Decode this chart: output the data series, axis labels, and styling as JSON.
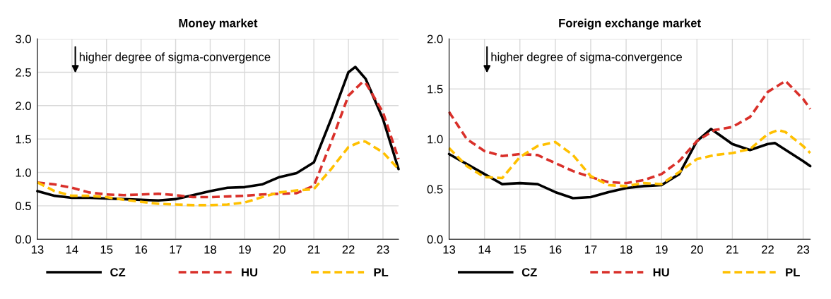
{
  "chart_data": [
    {
      "type": "line",
      "title": "Money market",
      "xlim": [
        13,
        23.45
      ],
      "xticks": [
        13,
        14,
        15,
        16,
        17,
        18,
        19,
        20,
        21,
        22,
        23
      ],
      "ylim": [
        0,
        3.0
      ],
      "yticks": [
        {
          "value": 0,
          "label": "0.0"
        },
        {
          "value": 0.5,
          "label": "0.5"
        },
        {
          "value": 1,
          "label": "1.0"
        },
        {
          "value": 1.5,
          "label": "1.5"
        },
        {
          "value": 2,
          "label": "2.0"
        },
        {
          "value": 2.5,
          "label": "2.5"
        },
        {
          "value": 3,
          "label": "3.0"
        }
      ],
      "grid": true,
      "legend": "bottom",
      "marker": "none",
      "annotations": [
        "higher degree of sigma-convergence"
      ],
      "series": [
        {
          "name": "CZ",
          "color": "#000000",
          "line_style": "solid",
          "x": [
            13,
            13.5,
            14,
            14.5,
            15,
            15.5,
            16,
            16.5,
            17,
            17.5,
            18,
            18.5,
            19,
            19.5,
            20,
            20.5,
            21,
            21.5,
            22,
            22.2,
            22.5,
            23,
            23.45
          ],
          "values": [
            0.72,
            0.65,
            0.62,
            0.62,
            0.61,
            0.6,
            0.59,
            0.58,
            0.6,
            0.66,
            0.72,
            0.77,
            0.78,
            0.82,
            0.93,
            0.99,
            1.15,
            1.8,
            2.5,
            2.58,
            2.4,
            1.8,
            1.05
          ]
        },
        {
          "name": "HU",
          "color": "#d9302a",
          "line_style": "dashed",
          "x": [
            13,
            13.5,
            14,
            14.5,
            15,
            15.5,
            16,
            16.5,
            17,
            17.5,
            18,
            18.5,
            19,
            19.5,
            20,
            20.5,
            21,
            21.5,
            22,
            22.4,
            22.5,
            23,
            23.45
          ],
          "values": [
            0.85,
            0.82,
            0.77,
            0.7,
            0.67,
            0.66,
            0.67,
            0.68,
            0.66,
            0.63,
            0.63,
            0.64,
            0.65,
            0.67,
            0.68,
            0.69,
            0.8,
            1.45,
            2.15,
            2.35,
            2.34,
            1.9,
            1.2
          ]
        },
        {
          "name": "PL",
          "color": "#ffc000",
          "line_style": "dashed",
          "x": [
            13,
            13.5,
            14,
            14.5,
            15,
            15.5,
            16,
            16.5,
            17,
            17.5,
            18,
            18.5,
            19,
            19.5,
            20,
            20.5,
            21,
            21.5,
            22,
            22.4,
            22.5,
            23,
            23.45
          ],
          "values": [
            0.85,
            0.72,
            0.65,
            0.65,
            0.63,
            0.59,
            0.56,
            0.53,
            0.52,
            0.51,
            0.51,
            0.52,
            0.55,
            0.63,
            0.7,
            0.73,
            0.75,
            1.05,
            1.38,
            1.47,
            1.46,
            1.3,
            1.05
          ]
        }
      ]
    },
    {
      "type": "line",
      "title": "Foreign exchange market",
      "xlim": [
        13,
        23.2
      ],
      "xticks": [
        13,
        14,
        15,
        16,
        17,
        18,
        19,
        20,
        21,
        22,
        23
      ],
      "ylim": [
        0,
        2.0
      ],
      "yticks": [
        {
          "value": 0,
          "label": "0.0"
        },
        {
          "value": 0.5,
          "label": "0.5"
        },
        {
          "value": 1,
          "label": "1.0"
        },
        {
          "value": 1.5,
          "label": "1.5"
        },
        {
          "value": 2,
          "label": "2.0"
        }
      ],
      "grid": true,
      "legend": "bottom",
      "marker": "none",
      "annotations": [
        "higher degree of sigma-convergence"
      ],
      "series": [
        {
          "name": "CZ",
          "color": "#000000",
          "line_style": "solid",
          "x": [
            13,
            13.5,
            14,
            14.5,
            15,
            15.5,
            16,
            16.5,
            17,
            17.5,
            18,
            18.5,
            19,
            19.5,
            20,
            20.4,
            21,
            21.5,
            22,
            22.2,
            23,
            23.2
          ],
          "values": [
            0.85,
            0.75,
            0.65,
            0.55,
            0.56,
            0.55,
            0.47,
            0.41,
            0.42,
            0.47,
            0.51,
            0.53,
            0.54,
            0.65,
            0.98,
            1.1,
            0.95,
            0.89,
            0.95,
            0.96,
            0.78,
            0.73
          ]
        },
        {
          "name": "HU",
          "color": "#d9302a",
          "line_style": "dashed",
          "x": [
            13,
            13.5,
            14,
            14.5,
            15,
            15.5,
            16,
            16.5,
            17,
            17.5,
            18,
            18.5,
            19,
            19.5,
            20,
            20.5,
            21,
            21.5,
            22,
            22.5,
            23,
            23.2
          ],
          "values": [
            1.27,
            1.0,
            0.88,
            0.83,
            0.85,
            0.84,
            0.76,
            0.68,
            0.62,
            0.57,
            0.56,
            0.59,
            0.65,
            0.78,
            0.98,
            1.09,
            1.12,
            1.22,
            1.47,
            1.58,
            1.4,
            1.3
          ]
        },
        {
          "name": "PL",
          "color": "#ffc000",
          "line_style": "dashed",
          "x": [
            13,
            13.5,
            14,
            14.5,
            15,
            15.5,
            16,
            16.5,
            17,
            17.5,
            18,
            18.5,
            19,
            19.5,
            20,
            20.5,
            21,
            21.5,
            22,
            22.3,
            22.5,
            23,
            23.2
          ],
          "values": [
            0.91,
            0.73,
            0.62,
            0.61,
            0.82,
            0.93,
            0.97,
            0.84,
            0.63,
            0.54,
            0.53,
            0.56,
            0.55,
            0.67,
            0.8,
            0.84,
            0.86,
            0.9,
            1.05,
            1.09,
            1.07,
            0.93,
            0.86
          ]
        }
      ]
    }
  ]
}
